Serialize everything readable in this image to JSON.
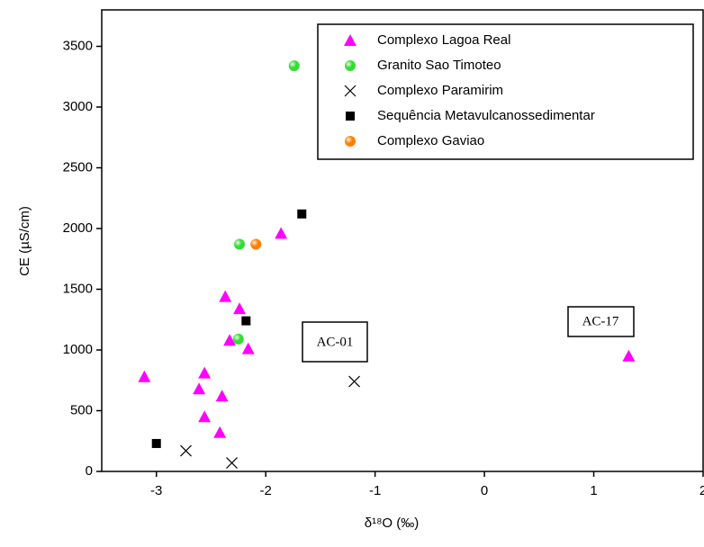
{
  "chart_data": {
    "type": "scatter",
    "x_label": "δ¹⁸O (‰)",
    "y_label": "CE (µS/cm)",
    "xlim": [
      -3.5,
      2
    ],
    "xticks": [
      -3,
      -2,
      -1,
      0,
      1,
      2
    ],
    "ylim": [
      0,
      3800
    ],
    "yticks": [
      0,
      500,
      1000,
      1500,
      2000,
      2500,
      3000,
      3500
    ],
    "legend": "upper right",
    "annotations": [
      "AC-01",
      "AC-17"
    ],
    "series": [
      {
        "name": "Complexo Lagoa Real",
        "color": "#ff00ff",
        "marker": "triangle",
        "x": [
          -3.11,
          -2.56,
          -2.61,
          -2.4,
          -2.56,
          -2.42,
          -2.37,
          -2.24,
          -2.33,
          -2.16,
          -1.86,
          1.32
        ],
        "values": [
          780,
          810,
          680,
          620,
          450,
          320,
          1440,
          1340,
          1080,
          1010,
          1960,
          950
        ]
      },
      {
        "name": "Granito Sao Timoteo",
        "color": "#33dd33",
        "marker": "sphere",
        "x": [
          -1.74,
          -2.24,
          -2.25
        ],
        "values": [
          3340,
          1870,
          1090
        ]
      },
      {
        "name": "Complexo Paramirim",
        "color": "#000000",
        "marker": "cross",
        "x": [
          -2.73,
          -2.31,
          -1.19
        ],
        "values": [
          170,
          70,
          740
        ]
      },
      {
        "name": "Sequência Metavulcanossedimentar",
        "color": "#000000",
        "marker": "square",
        "x": [
          -3.0,
          -2.18,
          -1.67
        ],
        "values": [
          230,
          1240,
          2120
        ]
      },
      {
        "name": "Complexo Gaviao",
        "color": "#ff8000",
        "marker": "sphere",
        "x": [
          -2.09
        ],
        "values": [
          1870
        ]
      }
    ]
  }
}
